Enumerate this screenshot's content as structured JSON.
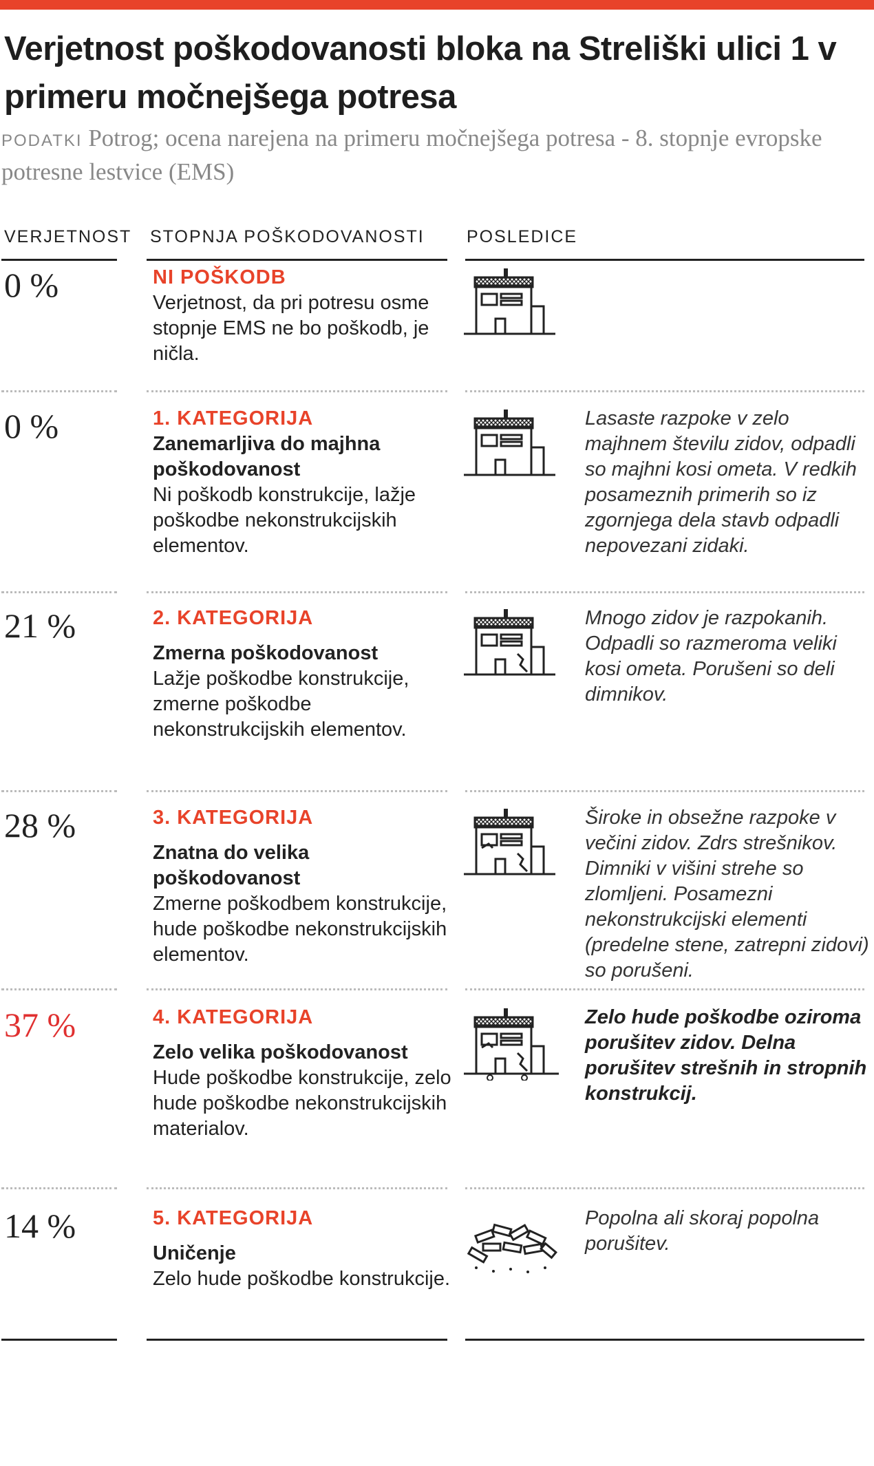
{
  "title": "Verjetnost poškodovanosti bloka na Streliški ulici 1 v primeru močnejšega potresa",
  "source": {
    "label": "PODATKI",
    "text": "Potrog; ocena narejena na primeru močnejšega potresa - 8. stopnje evropske potresne lestvice (EMS)"
  },
  "headers": {
    "probability": "VERJETNOST",
    "degree": "STOPNJA POŠKODOVANOSTI",
    "consequences": "POSLEDICE"
  },
  "colors": {
    "accent": "#e8432a",
    "highlight": "#e03030"
  },
  "rows": [
    {
      "pct": "0 %",
      "category": "NI POŠKODB",
      "name": "",
      "text": "Verjetnost, da pri potresu osme stopnje  EMS ne bo poškodb, je ničla.",
      "consequence": "",
      "icon": "intact-house-icon"
    },
    {
      "pct": "0 %",
      "category": "1. KATEGORIJA",
      "name": "Zanemarljiva do majhna poškodovanost",
      "text": "Ni poškodb konstrukcije, lažje poškodbe nekonstrukcijskih elementov.",
      "consequence": "Lasaste razpoke v zelo majhnem številu zidov, odpadli so majhni kosi ometa. V redkih posameznih primerih so iz zgornjega dela stavb odpadli nepovezani zidaki.",
      "icon": "slightly-damaged-house-icon"
    },
    {
      "pct": "21 %",
      "category": "2. KATEGORIJA",
      "name": "Zmerna poškodovanost",
      "text": "Lažje poškodbe konstrukcije, zmerne poškodbe nekonstrukcijskih elementov.",
      "consequence": "Mnogo zidov je razpokanih. Odpadli so razmeroma veliki kosi ometa. Porušeni so deli dimnikov.",
      "icon": "cracked-house-icon"
    },
    {
      "pct": "28 %",
      "category": "3. KATEGORIJA",
      "name": "Znatna do velika poškodovanost",
      "text": "Zmerne poškodbem konstrukcije, hude poškodbe nekonstrukcijskih elementov.",
      "consequence": "Široke in obsežne razpoke v večini zidov. Zdrs strešnikov. Dimniki v višini strehe so zlomljeni. Posamezni nekonstrukcijski elementi (predelne stene, zatrepni zidovi) so porušeni.",
      "icon": "heavily-damaged-house-icon"
    },
    {
      "pct": "37 %",
      "category": "4. KATEGORIJA",
      "name": "Zelo velika poškodovanost",
      "text": "Hude poškodbe konstrukcije, zelo hude poškodbe nekonstrukcijskih materialov.",
      "consequence": "Zelo hude poškodbe oziroma porušitev zidov. Delna porušitev strešnih in stropnih konstrukcij.",
      "icon": "collapsing-house-icon"
    },
    {
      "pct": "14 %",
      "category": "5. KATEGORIJA",
      "name": "Uničenje",
      "text": "Zelo hude poškodbe konstrukcije.",
      "consequence": "Popolna ali skoraj popolna porušitev.",
      "icon": "rubble-icon"
    }
  ]
}
